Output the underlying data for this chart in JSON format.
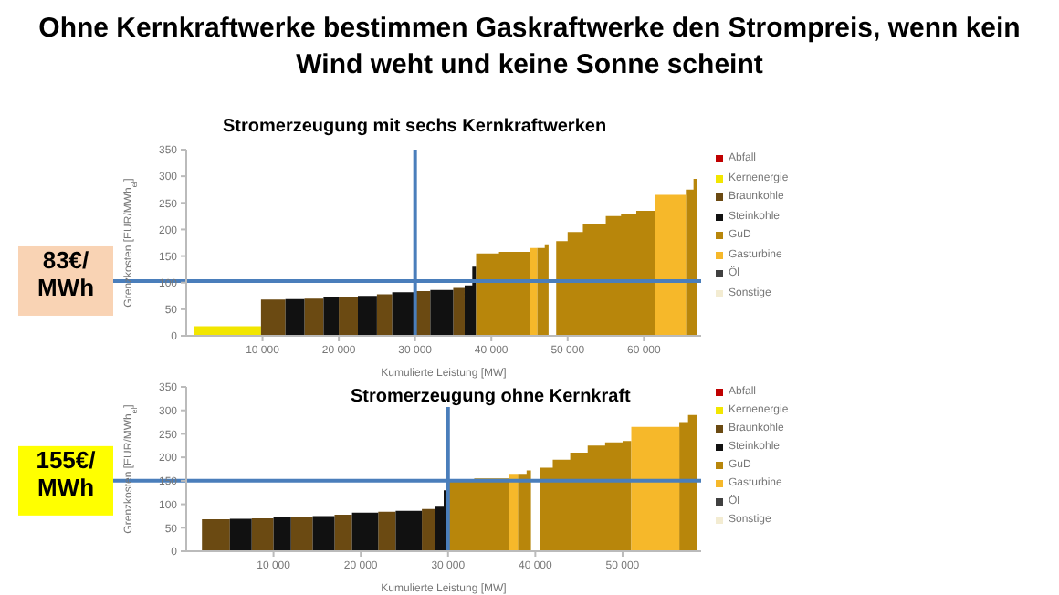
{
  "chart_data": [
    {
      "type": "area",
      "title": "Ohne Kernkraftwerke bestimmen Gaskraftwerke den Strompreis, wenn kein Wind weht und keine Sonne scheint",
      "subtitle": "Stromerzeugung mit sechs Kernkraftwerken",
      "xlabel": "Kumulierte Leistung [MW]",
      "ylabel": "Grenzkosten [EUR/MWh$_{el}$]",
      "xlim": [
        0,
        67500
      ],
      "ylim": [
        0,
        350
      ],
      "xticks": [
        {
          "value": 10000,
          "label": "10 000"
        },
        {
          "value": 20000,
          "label": "20 000"
        },
        {
          "value": 30000,
          "label": "30 000"
        },
        {
          "value": 40000,
          "label": "40 000"
        },
        {
          "value": 50000,
          "label": "50 000"
        },
        {
          "value": 60000,
          "label": "60 000"
        }
      ],
      "yticks": [
        0,
        50,
        100,
        150,
        200,
        250,
        300,
        350
      ],
      "legend": "right",
      "ref_lines": [
        {
          "axis": "y",
          "value": 103,
          "label": "83€/ MWh",
          "color": "#4a7ebb"
        },
        {
          "axis": "x",
          "value": 30000,
          "color": "#4a7ebb"
        }
      ],
      "series": [
        {
          "name": "Abfall",
          "color": "#c00000"
        },
        {
          "name": "Kernenergie",
          "color": "#f2e600",
          "x": [
            1000,
            9800
          ],
          "values": [
            18,
            18
          ]
        },
        {
          "name": "Braunkohle",
          "color": "#6b4a12",
          "x": [
            9800,
            13000,
            14000,
            15500,
            18000,
            19000,
            20000,
            22500,
            23500,
            25000,
            27000,
            28000,
            30000,
            32000,
            33000,
            35000,
            36500
          ],
          "values": [
            68,
            68,
            null,
            70,
            70,
            null,
            73,
            73,
            null,
            78,
            78,
            null,
            84,
            84,
            null,
            90,
            90
          ]
        },
        {
          "name": "Steinkohle",
          "color": "#111111",
          "x": [
            13000,
            15500,
            16500,
            18000,
            20000,
            21000,
            22500,
            25000,
            26000,
            27000,
            30000,
            31000,
            32000,
            35000,
            35500,
            36500,
            37500,
            38000
          ],
          "values": [
            69,
            69,
            null,
            72,
            72,
            null,
            75,
            75,
            null,
            82,
            82,
            null,
            86,
            86,
            null,
            95,
            130,
            130
          ]
        },
        {
          "name": "GuD",
          "color": "#b8860b",
          "x": [
            38000,
            41000,
            45000,
            45500,
            46000,
            47000,
            47500,
            47800,
            48500,
            50000,
            52000,
            55000,
            57000,
            59000,
            61500,
            62000,
            65500,
            66500,
            67000
          ],
          "values": [
            155,
            158,
            162,
            null,
            165,
            172,
            172,
            null,
            178,
            195,
            210,
            225,
            230,
            235,
            235,
            null,
            275,
            295,
            300
          ]
        },
        {
          "name": "Gasturbine",
          "color": "#f6b82a",
          "x": [
            45000,
            46000,
            46500,
            61500,
            65500
          ],
          "values": [
            165,
            165,
            null,
            265,
            265
          ]
        },
        {
          "name": "Öl",
          "color": "#404040"
        },
        {
          "name": "Sonstige",
          "color": "#f3ecd2"
        }
      ]
    },
    {
      "type": "area",
      "title": "Stromerzeugung ohne Kernkraft",
      "xlabel": "Kumulierte Leistung [MW]",
      "ylabel": "Grenzkosten [EUR/MWh$_{el}$]",
      "xlim": [
        0,
        59000
      ],
      "ylim": [
        0,
        350
      ],
      "xticks": [
        {
          "value": 10000,
          "label": "10 000"
        },
        {
          "value": 20000,
          "label": "20 000"
        },
        {
          "value": 30000,
          "label": "30 000"
        },
        {
          "value": 40000,
          "label": "40 000"
        },
        {
          "value": 50000,
          "label": "50 000"
        }
      ],
      "yticks": [
        0,
        50,
        100,
        150,
        200,
        250,
        300,
        350
      ],
      "legend": "right",
      "ref_lines": [
        {
          "axis": "y",
          "value": 150,
          "label": "155€/ MWh",
          "color": "#4a7ebb"
        },
        {
          "axis": "x",
          "value": 30000,
          "color": "#4a7ebb"
        }
      ],
      "series": [
        {
          "name": "Abfall",
          "color": "#c00000"
        },
        {
          "name": "Kernenergie",
          "color": "#f2e600"
        },
        {
          "name": "Braunkohle",
          "color": "#6b4a12",
          "x": [
            1800,
            5000,
            6000,
            7500,
            10000,
            11000,
            12000,
            14500,
            15500,
            17000,
            19000,
            20000,
            22000,
            24000,
            25000,
            27000,
            28500
          ],
          "values": [
            68,
            68,
            null,
            70,
            70,
            null,
            73,
            73,
            null,
            78,
            78,
            null,
            84,
            84,
            null,
            90,
            90
          ]
        },
        {
          "name": "Steinkohle",
          "color": "#111111",
          "x": [
            5000,
            7500,
            7600,
            10000,
            12000,
            12500,
            14500,
            17000,
            18000,
            19000,
            22000,
            23000,
            24000,
            27000,
            27500,
            28500,
            29500,
            30000
          ],
          "values": [
            69,
            69,
            null,
            72,
            72,
            null,
            75,
            75,
            null,
            82,
            82,
            null,
            86,
            86,
            null,
            95,
            130,
            130
          ]
        },
        {
          "name": "GuD",
          "color": "#b8860b",
          "x": [
            30000,
            33000,
            37000,
            37500,
            38000,
            39000,
            39500,
            39800,
            40500,
            42000,
            44000,
            46000,
            48000,
            50000,
            51000,
            51500,
            56500,
            57500,
            58500
          ],
          "values": [
            150,
            155,
            160,
            null,
            165,
            172,
            172,
            null,
            178,
            195,
            210,
            225,
            232,
            235,
            235,
            null,
            275,
            290,
            300
          ]
        },
        {
          "name": "Gasturbine",
          "color": "#f6b82a",
          "x": [
            37000,
            38000,
            38500,
            51000,
            56500
          ],
          "values": [
            165,
            165,
            null,
            265,
            265
          ]
        },
        {
          "name": "Öl",
          "color": "#404040"
        },
        {
          "name": "Sonstige",
          "color": "#f3ecd2"
        }
      ]
    }
  ]
}
